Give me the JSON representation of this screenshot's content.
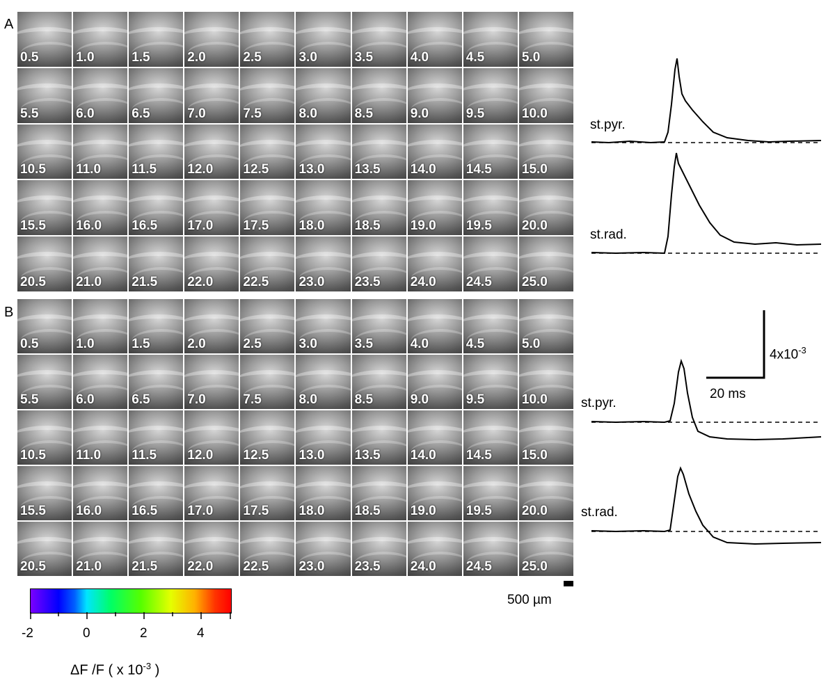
{
  "panels": [
    {
      "letter": "A",
      "times": [
        "0.5",
        "1.0",
        "1.5",
        "2.0",
        "2.5",
        "3.0",
        "3.5",
        "4.0",
        "4.5",
        "5.0",
        "5.5",
        "6.0",
        "6.5",
        "7.0",
        "7.5",
        "8.0",
        "8.5",
        "9.0",
        "9.5",
        "10.0",
        "10.5",
        "11.0",
        "11.5",
        "12.0",
        "12.5",
        "13.0",
        "13.5",
        "14.0",
        "14.5",
        "15.0",
        "15.5",
        "16.0",
        "16.5",
        "17.0",
        "17.5",
        "18.0",
        "18.5",
        "19.0",
        "19.5",
        "20.0",
        "20.5",
        "21.0",
        "21.5",
        "22.0",
        "22.5",
        "23.0",
        "23.5",
        "24.0",
        "24.5",
        "25.0"
      ],
      "trace_labels": [
        "st.pyr.",
        "st.rad."
      ]
    },
    {
      "letter": "B",
      "times": [
        "0.5",
        "1.0",
        "1.5",
        "2.0",
        "2.5",
        "3.0",
        "3.5",
        "4.0",
        "4.5",
        "5.0",
        "5.5",
        "6.0",
        "6.5",
        "7.0",
        "7.5",
        "8.0",
        "8.5",
        "9.0",
        "9.5",
        "10.0",
        "10.5",
        "11.0",
        "11.5",
        "12.0",
        "12.5",
        "13.0",
        "13.5",
        "14.0",
        "14.5",
        "15.0",
        "15.5",
        "16.0",
        "16.5",
        "17.0",
        "17.5",
        "18.0",
        "18.5",
        "19.0",
        "19.5",
        "20.0",
        "20.5",
        "21.0",
        "21.5",
        "22.0",
        "22.5",
        "23.0",
        "23.5",
        "24.0",
        "24.5",
        "25.0"
      ],
      "trace_labels": [
        "st.pyr.",
        "st.rad."
      ]
    }
  ],
  "scale": {
    "amplitude": "4x10",
    "amplitude_exp": "-3",
    "time": "20 ms",
    "spatial": "500 µm"
  },
  "colorbar": {
    "ticks": [
      "-2",
      "0",
      "2",
      "4"
    ],
    "label_main": "ΔF /F ( x 10",
    "label_exp": "-3",
    "label_end": ")"
  }
}
